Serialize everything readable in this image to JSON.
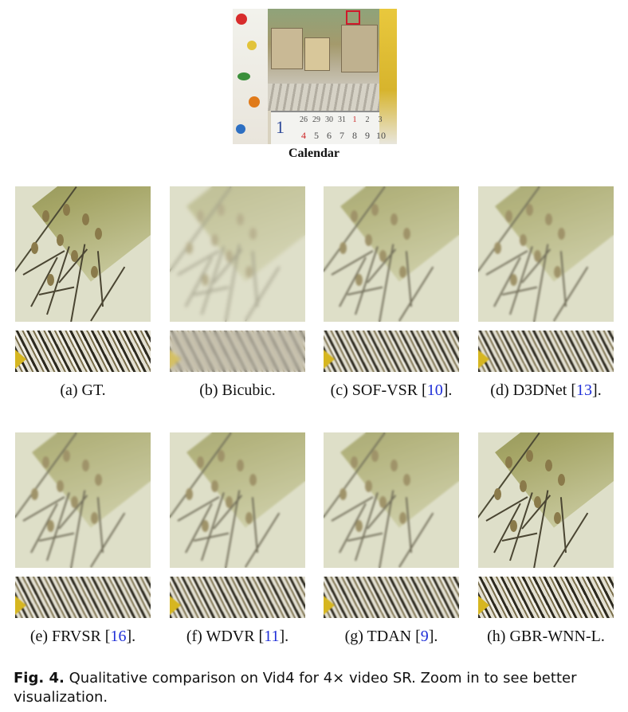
{
  "hero": {
    "caption": "Calendar",
    "calendar_month": "1",
    "calendar_row1": [
      "26",
      "29",
      "30",
      "31",
      "1",
      "2",
      "3"
    ],
    "calendar_row2": [
      "4",
      "5",
      "6",
      "7",
      "8",
      "9",
      "10"
    ]
  },
  "panels": [
    {
      "prefix": "(a) GT.",
      "name": "",
      "ref": "",
      "suffix": ""
    },
    {
      "prefix": "(b) Bicubic.",
      "name": "",
      "ref": "",
      "suffix": ""
    },
    {
      "prefix": "(c) SOF-VSR [",
      "name": "",
      "ref": "10",
      "suffix": "]."
    },
    {
      "prefix": "(d) D3DNet [",
      "name": "",
      "ref": "13",
      "suffix": "]."
    },
    {
      "prefix": "(e) FRVSR [",
      "name": "",
      "ref": "16",
      "suffix": "]."
    },
    {
      "prefix": "(f) WDVR [",
      "name": "",
      "ref": "11",
      "suffix": "]."
    },
    {
      "prefix": "(g) TDAN [",
      "name": "",
      "ref": "9",
      "suffix": "]."
    },
    {
      "prefix": "(h) GBR-WNN-L.",
      "name": "",
      "ref": "",
      "suffix": ""
    }
  ],
  "figure_caption": {
    "lead": "Fig. 4.",
    "text": "Qualitative comparison on Vid4 for 4× video SR. Zoom in to see better visualization."
  },
  "colors": {
    "ref_link": "#1f2fd8",
    "roi_box": "#d0192b"
  }
}
